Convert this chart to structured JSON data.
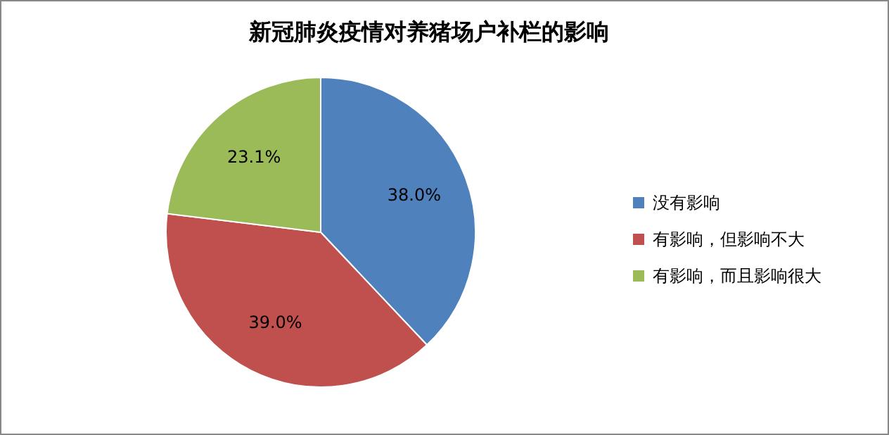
{
  "chart_data": {
    "type": "pie",
    "title": "新冠肺炎疫情对养猪场户补栏的影响",
    "categories": [
      "没有影响",
      "有影响，但影响不大",
      "有影响，而且影响很大"
    ],
    "values": [
      38.0,
      39.0,
      23.1
    ],
    "colors": [
      "#4f81bd",
      "#c0504d",
      "#9bbb59"
    ],
    "value_labels": [
      "38.0%",
      "39.0%",
      "23.1%"
    ],
    "legend": "right"
  }
}
